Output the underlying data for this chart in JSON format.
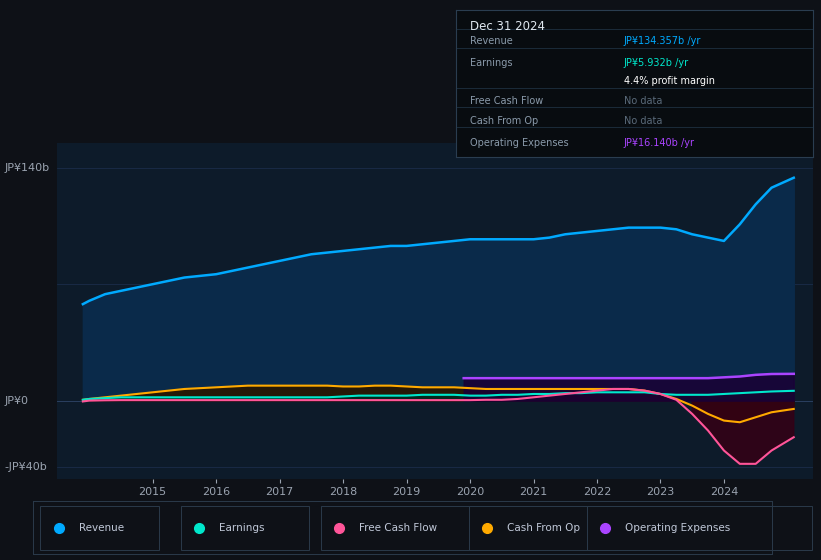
{
  "bg_color": "#0e1117",
  "plot_bg_color": "#0d1b2a",
  "text_color": "#9aa3b0",
  "ylabel_140": "JP¥140b",
  "ylabel_0": "JP¥0",
  "ylabel_neg40": "-JP¥40b",
  "ylim": [
    -47,
    155
  ],
  "xlim_start": 2013.5,
  "xlim_end": 2025.4,
  "xtick_years": [
    2015,
    2016,
    2017,
    2018,
    2019,
    2020,
    2021,
    2022,
    2023,
    2024
  ],
  "revenue_color": "#00aaff",
  "earnings_color": "#00e8cc",
  "fcf_color": "#ff5599",
  "cashop_color": "#ffaa00",
  "opex_color": "#aa44ff",
  "revenue_fill": "#0a2a4a",
  "revenue_x": [
    2013.9,
    2014.0,
    2014.25,
    2014.5,
    2014.75,
    2015.0,
    2015.25,
    2015.5,
    2015.75,
    2016.0,
    2016.25,
    2016.5,
    2016.75,
    2017.0,
    2017.25,
    2017.5,
    2017.75,
    2018.0,
    2018.25,
    2018.5,
    2018.75,
    2019.0,
    2019.25,
    2019.5,
    2019.75,
    2020.0,
    2020.25,
    2020.5,
    2020.75,
    2021.0,
    2021.25,
    2021.5,
    2021.75,
    2022.0,
    2022.25,
    2022.5,
    2022.75,
    2023.0,
    2023.25,
    2023.5,
    2023.75,
    2024.0,
    2024.25,
    2024.5,
    2024.75,
    2025.1
  ],
  "revenue_y": [
    58,
    60,
    64,
    66,
    68,
    70,
    72,
    74,
    75,
    76,
    78,
    80,
    82,
    84,
    86,
    88,
    89,
    90,
    91,
    92,
    93,
    93,
    94,
    95,
    96,
    97,
    97,
    97,
    97,
    97,
    98,
    100,
    101,
    102,
    103,
    104,
    104,
    104,
    103,
    100,
    98,
    96,
    106,
    118,
    128,
    134
  ],
  "earnings_x": [
    2013.9,
    2014.0,
    2014.25,
    2014.5,
    2014.75,
    2015.0,
    2015.25,
    2015.5,
    2015.75,
    2016.0,
    2016.25,
    2016.5,
    2016.75,
    2017.0,
    2017.25,
    2017.5,
    2017.75,
    2018.0,
    2018.25,
    2018.5,
    2018.75,
    2019.0,
    2019.25,
    2019.5,
    2019.75,
    2020.0,
    2020.25,
    2020.5,
    2020.75,
    2021.0,
    2021.25,
    2021.5,
    2021.75,
    2022.0,
    2022.25,
    2022.5,
    2022.75,
    2023.0,
    2023.25,
    2023.5,
    2023.75,
    2024.0,
    2024.25,
    2024.5,
    2024.75,
    2025.1
  ],
  "earnings_y": [
    0.5,
    1.0,
    1.5,
    2.0,
    2.0,
    2.0,
    2.0,
    2.0,
    2.0,
    2.0,
    2.0,
    2.0,
    2.0,
    2.0,
    2.0,
    2.0,
    2.0,
    2.5,
    3.0,
    3.0,
    3.0,
    3.0,
    3.5,
    3.5,
    3.5,
    3.0,
    3.0,
    3.5,
    3.5,
    4.0,
    4.0,
    4.5,
    4.5,
    5.0,
    5.0,
    5.0,
    5.0,
    4.0,
    3.5,
    3.5,
    3.5,
    4.0,
    4.5,
    5.0,
    5.5,
    5.9
  ],
  "fcf_x": [
    2013.9,
    2014.0,
    2014.25,
    2014.5,
    2014.75,
    2015.0,
    2015.25,
    2015.5,
    2015.75,
    2016.0,
    2016.25,
    2016.5,
    2016.75,
    2017.0,
    2017.25,
    2017.5,
    2017.75,
    2018.0,
    2018.25,
    2018.5,
    2018.75,
    2019.0,
    2019.25,
    2019.5,
    2019.75,
    2020.0,
    2020.25,
    2020.5,
    2020.75,
    2021.0,
    2021.25,
    2021.5,
    2021.75,
    2022.0,
    2022.25,
    2022.5,
    2022.75,
    2023.0,
    2023.25,
    2023.5,
    2023.75,
    2024.0,
    2024.25,
    2024.5,
    2024.75,
    2025.1
  ],
  "fcf_y": [
    -0.5,
    0.0,
    0.2,
    0.3,
    0.3,
    0.3,
    0.3,
    0.3,
    0.3,
    0.3,
    0.3,
    0.3,
    0.3,
    0.3,
    0.3,
    0.3,
    0.3,
    0.3,
    0.3,
    0.3,
    0.3,
    0.3,
    0.3,
    0.3,
    0.3,
    0.3,
    0.5,
    0.5,
    1.0,
    2.0,
    3.0,
    4.0,
    5.0,
    6.0,
    7.0,
    7.0,
    6.0,
    4.0,
    0.5,
    -8.0,
    -18.0,
    -30.0,
    -38.0,
    -38.0,
    -30.0,
    -22.0
  ],
  "cashop_x": [
    2013.9,
    2014.0,
    2014.25,
    2014.5,
    2014.75,
    2015.0,
    2015.25,
    2015.5,
    2015.75,
    2016.0,
    2016.25,
    2016.5,
    2016.75,
    2017.0,
    2017.25,
    2017.5,
    2017.75,
    2018.0,
    2018.25,
    2018.5,
    2018.75,
    2019.0,
    2019.25,
    2019.5,
    2019.75,
    2020.0,
    2020.25,
    2020.5,
    2020.75,
    2021.0,
    2021.25,
    2021.5,
    2021.75,
    2022.0,
    2022.25,
    2022.5,
    2022.75,
    2023.0,
    2023.25,
    2023.5,
    2023.75,
    2024.0,
    2024.25,
    2024.5,
    2024.75,
    2025.1
  ],
  "cashop_y": [
    0.5,
    1.0,
    2.0,
    3.0,
    4.0,
    5.0,
    6.0,
    7.0,
    7.5,
    8.0,
    8.5,
    9.0,
    9.0,
    9.0,
    9.0,
    9.0,
    9.0,
    8.5,
    8.5,
    9.0,
    9.0,
    8.5,
    8.0,
    8.0,
    8.0,
    7.5,
    7.0,
    7.0,
    7.0,
    7.0,
    7.0,
    7.0,
    7.0,
    7.0,
    7.0,
    7.0,
    6.0,
    4.0,
    1.0,
    -3.0,
    -8.0,
    -12.0,
    -13.0,
    -10.0,
    -7.0,
    -5.0
  ],
  "opex_x": [
    2019.9,
    2020.0,
    2020.25,
    2020.5,
    2020.75,
    2021.0,
    2021.25,
    2021.5,
    2021.75,
    2022.0,
    2022.25,
    2022.5,
    2022.75,
    2023.0,
    2023.25,
    2023.5,
    2023.75,
    2024.0,
    2024.25,
    2024.5,
    2024.75,
    2025.1
  ],
  "opex_y": [
    13.5,
    13.5,
    13.5,
    13.5,
    13.5,
    13.5,
    13.5,
    13.5,
    13.5,
    13.5,
    13.5,
    13.5,
    13.5,
    13.5,
    13.5,
    13.5,
    13.5,
    14.0,
    14.5,
    15.5,
    16.0,
    16.1
  ],
  "legend_items": [
    "Revenue",
    "Earnings",
    "Free Cash Flow",
    "Cash From Op",
    "Operating Expenses"
  ],
  "legend_colors": [
    "#00aaff",
    "#00e8cc",
    "#ff5599",
    "#ffaa00",
    "#aa44ff"
  ]
}
